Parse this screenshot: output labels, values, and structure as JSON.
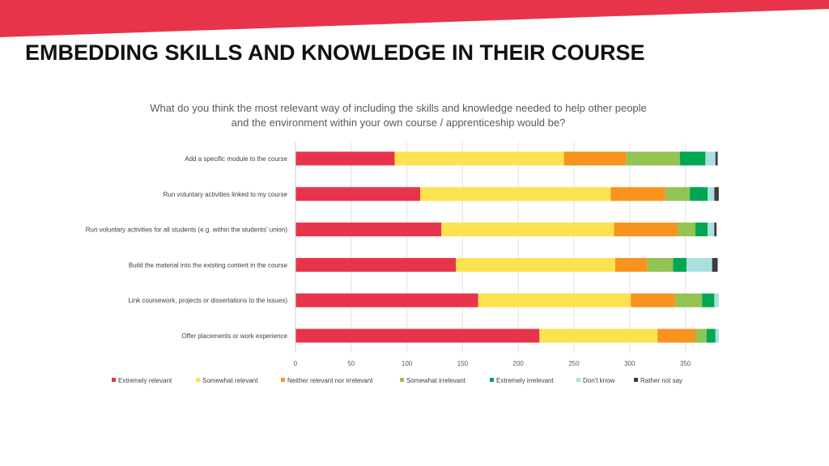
{
  "slide": {
    "title": "EMBEDDING SKILLS AND KNOWLEDGE IN THEIR COURSE",
    "banner_color": "#e8344a"
  },
  "chart_data": {
    "type": "bar",
    "orientation": "horizontal",
    "stacked": true,
    "title_lines": [
      "What do you think the most relevant way of including the skills and knowledge needed to help other people",
      "and the environment within your own course / apprenticeship would be?"
    ],
    "categories": [
      "Add a specific module to the course",
      "Run voluntary activities linked to my course",
      "Run voluntary activities for all students (e.g. within the students' union)",
      "Build the material into the existing content in the course",
      "Link coursework, projects or dissertations to the issues)",
      "Offer placements or work experience"
    ],
    "series": [
      {
        "name": "Extremely relevant",
        "color": "#e8344a",
        "values": [
          89,
          112,
          131,
          144,
          164,
          219
        ]
      },
      {
        "name": "Somewhat relevant",
        "color": "#fde24f",
        "values": [
          152,
          171,
          155,
          143,
          137,
          106
        ]
      },
      {
        "name": "Neither relevant nor irrelevant",
        "color": "#f7931e",
        "values": [
          56,
          49,
          57,
          29,
          40,
          34
        ]
      },
      {
        "name": "Somewhat irrelevant",
        "color": "#92c353",
        "values": [
          48,
          22,
          16,
          23,
          24,
          10
        ]
      },
      {
        "name": "Extremely irrelevant",
        "color": "#00a651",
        "values": [
          23,
          16,
          11,
          12,
          11,
          8
        ]
      },
      {
        "name": "Don't know",
        "color": "#a8e0e0",
        "values": [
          9,
          6,
          6,
          23,
          4,
          3
        ]
      },
      {
        "name": "Rather not say",
        "color": "#3c3c3c",
        "values": [
          2,
          4,
          2,
          5,
          0,
          0
        ]
      }
    ],
    "xlim": [
      0,
      380
    ],
    "xticks": [
      0,
      50,
      100,
      150,
      200,
      250,
      300,
      350
    ],
    "grid": true,
    "legend": "bottom"
  }
}
